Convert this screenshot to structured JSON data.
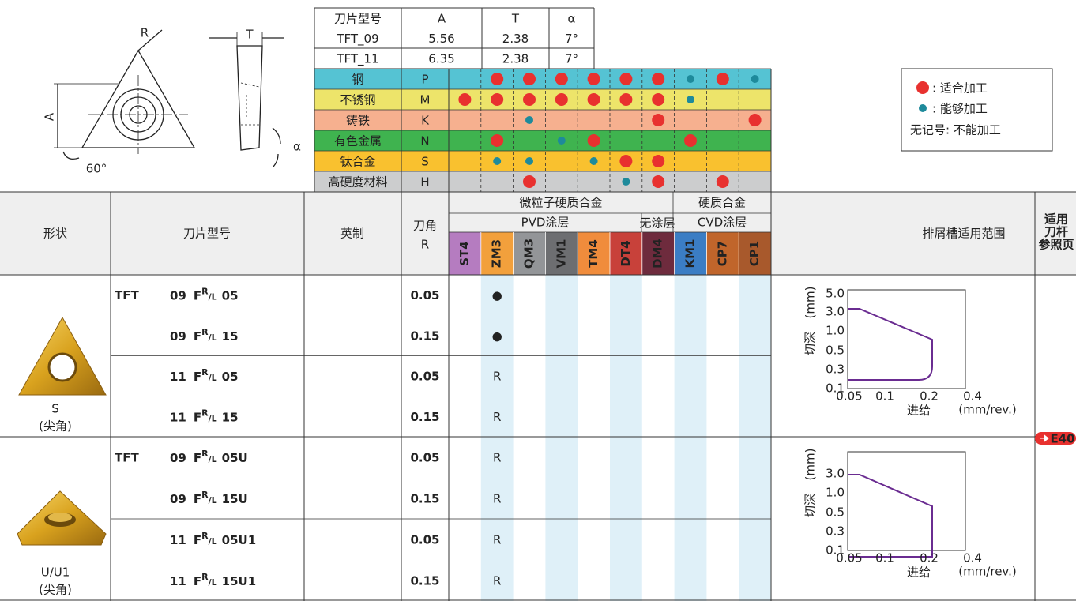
{
  "diagram": {
    "labels": [
      "R",
      "T",
      "A",
      "α",
      "60°"
    ]
  },
  "dimensions": {
    "header": [
      "刀片型号",
      "A",
      "T",
      "α"
    ],
    "rows": [
      [
        "TFT_09",
        "5.56",
        "2.38",
        "7°"
      ],
      [
        "TFT_11",
        "6.35",
        "2.38",
        "7°"
      ]
    ]
  },
  "materials": [
    {
      "name": "钢",
      "code": "P",
      "color": "#55c3d3",
      "marks": [
        null,
        0,
        0,
        0,
        0,
        0,
        0,
        1,
        0,
        1
      ]
    },
    {
      "name": "不锈钢",
      "code": "M",
      "color": "#ede46a",
      "marks": [
        0,
        0,
        0,
        0,
        0,
        0,
        0,
        1,
        null,
        null
      ]
    },
    {
      "name": "铸铁",
      "code": "K",
      "color": "#f6b08f",
      "marks": [
        null,
        null,
        1,
        null,
        null,
        null,
        0,
        null,
        null,
        0
      ]
    },
    {
      "name": "有色金属",
      "code": "N",
      "color": "#3fb34f",
      "marks": [
        null,
        0,
        null,
        1,
        0,
        null,
        null,
        0,
        null,
        null
      ]
    },
    {
      "name": "钛合金",
      "code": "S",
      "color": "#f9c12f",
      "marks": [
        null,
        1,
        1,
        null,
        1,
        0,
        0,
        null,
        null,
        null
      ]
    },
    {
      "name": "高硬度材料",
      "code": "H",
      "color": "#cccdce",
      "marks": [
        null,
        null,
        0,
        null,
        null,
        1,
        0,
        null,
        0,
        null
      ]
    }
  ],
  "legend": {
    "items": [
      {
        "label": ": 适合加工",
        "color": "#e8312f"
      },
      {
        "label": ": 能够加工",
        "color": "#1e8a9b"
      }
    ],
    "note": "无记号: 不能加工"
  },
  "table": {
    "headers": {
      "shape": "形状",
      "model": "刀片型号",
      "inch": "英制",
      "corner": [
        "刀角",
        "R"
      ],
      "family1": "微粒子硬质合金",
      "family2": "硬质合金",
      "coat1": "PVD涂层",
      "coat2": "无涂层",
      "coat3": "CVD涂层",
      "range": "排屑槽适用范围",
      "ref": [
        "适用",
        "刀杆",
        "参照页"
      ]
    },
    "grades": [
      {
        "name": "ST4",
        "color": "#b57cc0"
      },
      {
        "name": "ZM3",
        "color": "#f2a03c"
      },
      {
        "name": "QM3",
        "color": "#939598"
      },
      {
        "name": "VM1",
        "color": "#6d6e71"
      },
      {
        "name": "TM4",
        "color": "#f08c3c"
      },
      {
        "name": "DT4",
        "color": "#c8413a"
      },
      {
        "name": "DM4",
        "color": "#6e2b3d"
      },
      {
        "name": "KM1",
        "color": "#3b7dc4"
      },
      {
        "name": "CP7",
        "color": "#c0652b"
      },
      {
        "name": "CP1",
        "color": "#a8592c"
      }
    ],
    "groups": [
      {
        "shape": [
          "S",
          "(尖角)"
        ],
        "rows": [
          {
            "prefix": "TFT",
            "size": "09",
            "chip": "F",
            "hand_r": "R",
            "hand_l": "/L",
            "suffix": "05",
            "r": "0.05",
            "stock": [
              null,
              "●",
              null,
              null,
              null,
              null,
              null,
              null,
              null,
              null
            ]
          },
          {
            "size": "09",
            "chip": "F",
            "hand_r": "R",
            "hand_l": "/L",
            "suffix": "15",
            "r": "0.15",
            "stock": [
              null,
              "●",
              null,
              null,
              null,
              null,
              null,
              null,
              null,
              null
            ]
          },
          {
            "size": "11",
            "chip": "F",
            "hand_r": "R",
            "hand_l": "/L",
            "suffix": "05",
            "r": "0.05",
            "stock": [
              null,
              "R",
              null,
              null,
              null,
              null,
              null,
              null,
              null,
              null
            ]
          },
          {
            "size": "11",
            "chip": "F",
            "hand_r": "R",
            "hand_l": "/L",
            "suffix": "15",
            "r": "0.15",
            "stock": [
              null,
              "R",
              null,
              null,
              null,
              null,
              null,
              null,
              null,
              null
            ]
          }
        ],
        "chart": {
          "ylabel": "切深",
          "yunit": "(mm)",
          "xlabel": "进给",
          "xunit": "(mm/rev.)",
          "yticks": [
            "5.0",
            "3.0",
            "1.0",
            "0.5",
            "0.3",
            "0.1"
          ],
          "xticks": [
            "0.05",
            "0.1",
            "0.2",
            "0.4"
          ]
        }
      },
      {
        "shape": [
          "U/U1",
          "(尖角)"
        ],
        "rows": [
          {
            "prefix": "TFT",
            "size": "09",
            "chip": "F",
            "hand_r": "R",
            "hand_l": "/L",
            "suffix": "05U",
            "r": "0.05",
            "stock": [
              null,
              "R",
              null,
              null,
              null,
              null,
              null,
              null,
              null,
              null
            ]
          },
          {
            "size": "09",
            "chip": "F",
            "hand_r": "R",
            "hand_l": "/L",
            "suffix": "15U",
            "r": "0.15",
            "stock": [
              null,
              "R",
              null,
              null,
              null,
              null,
              null,
              null,
              null,
              null
            ]
          },
          {
            "size": "11",
            "chip": "F",
            "hand_r": "R",
            "hand_l": "/L",
            "suffix": "05U1",
            "r": "0.05",
            "stock": [
              null,
              "R",
              null,
              null,
              null,
              null,
              null,
              null,
              null,
              null
            ]
          },
          {
            "size": "11",
            "chip": "F",
            "hand_r": "R",
            "hand_l": "/L",
            "suffix": "15U1",
            "r": "0.15",
            "stock": [
              null,
              "R",
              null,
              null,
              null,
              null,
              null,
              null,
              null,
              null
            ]
          }
        ],
        "chart": {
          "ylabel": "切深",
          "yunit": "(mm)",
          "xlabel": "进给",
          "xunit": "(mm/rev.)",
          "yticks": [
            "3.0",
            "1.0",
            "0.5",
            "0.3",
            "0.1"
          ],
          "xticks": [
            "0.05",
            "0.1",
            "0.2",
            "0.4"
          ]
        }
      }
    ],
    "ref_page": "E40"
  }
}
